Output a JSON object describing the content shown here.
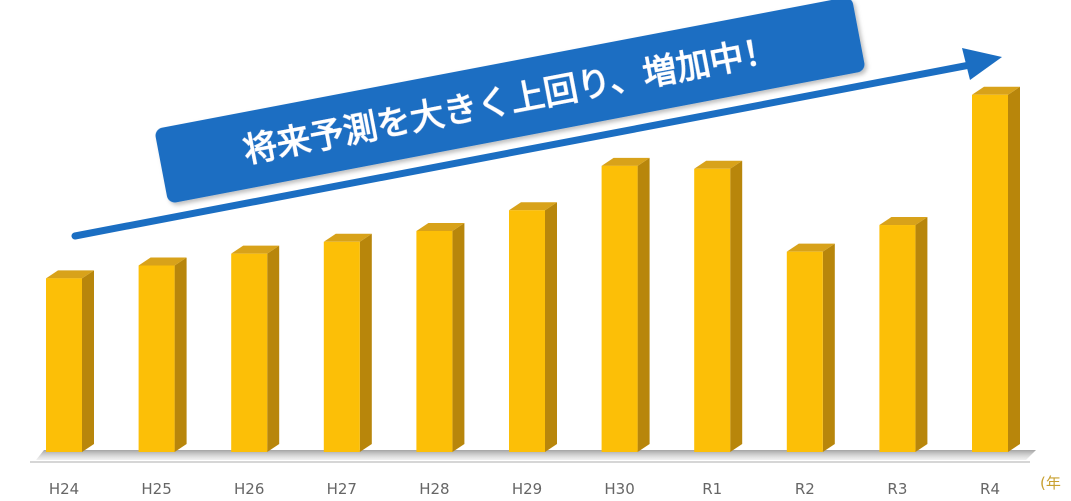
{
  "chart_data": {
    "type": "bar",
    "categories": [
      "H24",
      "H25",
      "H26",
      "H27",
      "H28",
      "H29",
      "H30",
      "R1",
      "R2",
      "R3",
      "R4"
    ],
    "values": [
      176,
      189,
      201,
      213,
      224,
      245,
      290,
      287,
      203,
      230,
      362
    ],
    "ylim": [
      0,
      380
    ],
    "grid": false,
    "unit_label": "(年",
    "annotation": "将来予測を大きく上回り、増加中！",
    "colors": {
      "bar_front": "#fcbf07",
      "bar_side": "#b8860b",
      "bar_top": "#d8a21a",
      "banner": "#1b6ec2",
      "arrow": "#1b6ec2",
      "axis": "#c8c8c8",
      "floor_shadow": "#8c8c8c"
    }
  }
}
